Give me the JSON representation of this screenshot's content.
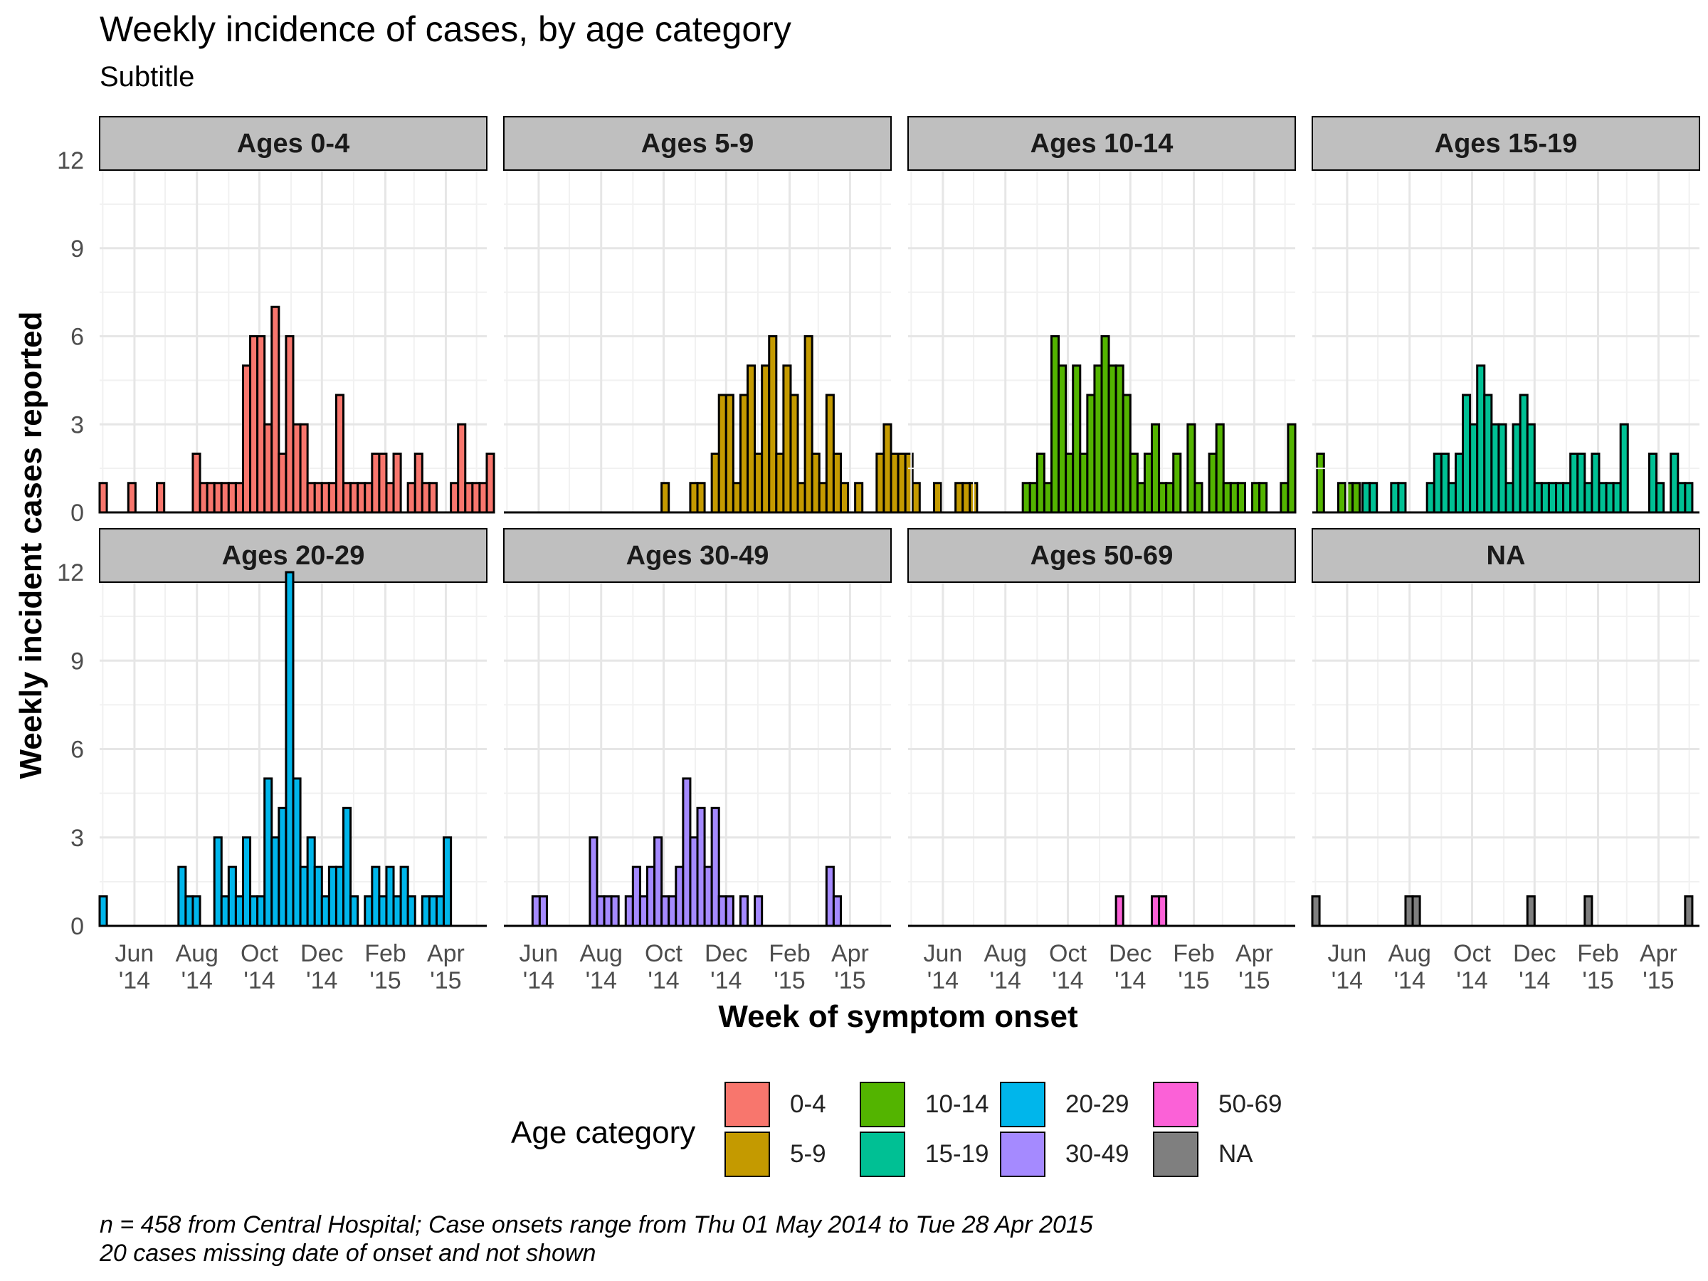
{
  "title": "Weekly incidence of cases, by age category",
  "subtitle": "Subtitle",
  "caption_lines": [
    "n = 458 from Central Hospital; Case onsets range from Thu 01 May 2014 to Tue 28 Apr 2015",
    "20 cases missing date of onset and not shown"
  ],
  "legend": {
    "title": "Age category",
    "items": [
      {
        "label": "0-4",
        "color": "#F8766D"
      },
      {
        "label": "5-9",
        "color": "#C49A00"
      },
      {
        "label": "10-14",
        "color": "#53B400"
      },
      {
        "label": "15-19",
        "color": "#00C094"
      },
      {
        "label": "20-29",
        "color": "#00B6EB"
      },
      {
        "label": "30-49",
        "color": "#A58AFF"
      },
      {
        "label": "50-69",
        "color": "#FB61D7"
      },
      {
        "label": "NA",
        "color": "#7F7F7F"
      }
    ]
  },
  "chart_data": {
    "type": "bar",
    "xlabel": "Week of symptom onset",
    "ylabel": "Weekly incident cases reported",
    "ylim": [
      0,
      12
    ],
    "yticks": [
      0,
      3,
      6,
      9,
      12
    ],
    "x_start": "2014-04-28",
    "bin": "week",
    "xticks": [
      {
        "line1": "Jun",
        "line2": "'14",
        "date": "2014-06-01"
      },
      {
        "line1": "Aug",
        "line2": "'14",
        "date": "2014-08-01"
      },
      {
        "line1": "Oct",
        "line2": "'14",
        "date": "2014-10-01"
      },
      {
        "line1": "Dec",
        "line2": "'14",
        "date": "2014-12-01"
      },
      {
        "line1": "Feb",
        "line2": "'15",
        "date": "2015-02-01"
      },
      {
        "line1": "Apr",
        "line2": "'15",
        "date": "2015-04-01"
      }
    ],
    "grid": true,
    "legend_position": "bottom",
    "facets": [
      {
        "label": "Ages 0-4",
        "color": "#F8766D",
        "values": [
          1,
          0,
          0,
          0,
          1,
          0,
          0,
          0,
          1,
          0,
          0,
          0,
          0,
          2,
          1,
          1,
          1,
          1,
          1,
          1,
          5,
          6,
          6,
          3,
          7,
          2,
          6,
          3,
          3,
          1,
          1,
          1,
          1,
          4,
          1,
          1,
          1,
          1,
          2,
          2,
          1,
          2,
          0,
          1,
          2,
          1,
          1,
          0,
          0,
          1,
          3,
          1,
          1,
          1,
          2
        ]
      },
      {
        "label": "Ages 5-9",
        "color": "#C49A00",
        "values": [
          0,
          0,
          0,
          0,
          0,
          0,
          0,
          0,
          0,
          0,
          0,
          0,
          0,
          0,
          0,
          0,
          0,
          0,
          0,
          0,
          0,
          0,
          1,
          0,
          0,
          0,
          1,
          1,
          0,
          2,
          4,
          4,
          1,
          4,
          5,
          2,
          5,
          6,
          2,
          5,
          4,
          1,
          6,
          2,
          1,
          4,
          2,
          1,
          0,
          1,
          0,
          0,
          2,
          3,
          2,
          2,
          2,
          1,
          0,
          0,
          1,
          0,
          0,
          1,
          1,
          1,
          0
        ]
      },
      {
        "label": "Ages 10-14",
        "color": "#53B400",
        "values": [
          0,
          0,
          0,
          0,
          0,
          0,
          0,
          0,
          0,
          0,
          0,
          0,
          0,
          0,
          0,
          0,
          1,
          1,
          2,
          1,
          6,
          5,
          2,
          5,
          2,
          4,
          5,
          6,
          5,
          5,
          4,
          2,
          1,
          2,
          3,
          1,
          1,
          2,
          0,
          3,
          1,
          0,
          2,
          3,
          1,
          1,
          1,
          0,
          1,
          1,
          0,
          0,
          1,
          3,
          0,
          0,
          0,
          2,
          0,
          0,
          1,
          1,
          1
        ]
      },
      {
        "label": "Ages 15-19",
        "color": "#00C094",
        "values": [
          0,
          0,
          0,
          0,
          0,
          0,
          0,
          1,
          1,
          0,
          0,
          1,
          1,
          0,
          0,
          0,
          1,
          2,
          2,
          1,
          2,
          4,
          3,
          5,
          4,
          3,
          3,
          1,
          3,
          4,
          3,
          1,
          1,
          1,
          1,
          1,
          2,
          2,
          1,
          2,
          1,
          1,
          1,
          3,
          0,
          0,
          0,
          2,
          1,
          0,
          2,
          1,
          1
        ]
      },
      {
        "label": "Ages 20-29",
        "color": "#00B6EB",
        "values": [
          1,
          0,
          0,
          0,
          0,
          0,
          0,
          0,
          0,
          0,
          0,
          2,
          1,
          1,
          0,
          0,
          3,
          1,
          2,
          1,
          3,
          1,
          1,
          5,
          3,
          4,
          12,
          5,
          2,
          3,
          2,
          1,
          2,
          2,
          4,
          1,
          0,
          1,
          2,
          1,
          2,
          1,
          2,
          1,
          0,
          1,
          1,
          1,
          3
        ]
      },
      {
        "label": "Ages 30-49",
        "color": "#A58AFF",
        "values": [
          0,
          0,
          0,
          0,
          1,
          1,
          0,
          0,
          0,
          0,
          0,
          0,
          3,
          1,
          1,
          1,
          0,
          1,
          2,
          1,
          2,
          3,
          1,
          1,
          2,
          5,
          3,
          4,
          2,
          4,
          1,
          1,
          0,
          1,
          0,
          1,
          0,
          0,
          0,
          0,
          0,
          0,
          0,
          0,
          0,
          2,
          1
        ]
      },
      {
        "label": "Ages 50-69",
        "color": "#FB61D7",
        "values": [
          0,
          0,
          0,
          0,
          0,
          0,
          0,
          0,
          0,
          0,
          0,
          0,
          0,
          0,
          0,
          0,
          0,
          0,
          0,
          0,
          0,
          0,
          0,
          0,
          0,
          0,
          0,
          0,
          0,
          1,
          0,
          0,
          0,
          0,
          1,
          1
        ]
      },
      {
        "label": "NA",
        "color": "#7F7F7F",
        "values": [
          1,
          0,
          0,
          0,
          0,
          0,
          0,
          0,
          0,
          0,
          0,
          0,
          0,
          1,
          1,
          0,
          0,
          0,
          0,
          0,
          0,
          0,
          0,
          0,
          0,
          0,
          0,
          0,
          0,
          0,
          1,
          0,
          0,
          0,
          0,
          0,
          0,
          0,
          1,
          0,
          0,
          0,
          0,
          0,
          0,
          0,
          0,
          0,
          0,
          0,
          0,
          0,
          1
        ]
      }
    ]
  }
}
